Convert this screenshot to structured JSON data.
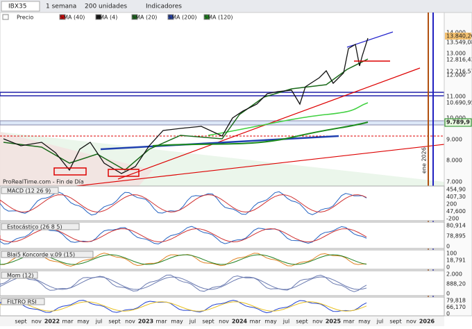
{
  "toolbar": {
    "symbol": "IBX35",
    "period": "1 semana",
    "units": "200 unidades",
    "indicators": "Indicadores"
  },
  "legend": [
    "Precio",
    "SMA (40)",
    "SMA (4)",
    "SMA (20)",
    "SMA (200)",
    "SMA (120)"
  ],
  "price_axis": [
    "14.000",
    "13.840,20",
    "13.549,08",
    "13.000",
    "12.816,43",
    "12.216,57",
    "12.000",
    "11.000",
    "10.690,95",
    "10.000",
    "9.789,9",
    "9.000",
    "8.000",
    "7.000"
  ],
  "watermark": "ProRealTime.com - Fin de Día",
  "vertical_label": "ene 2026",
  "panels": [
    {
      "title": "MACD (12 26 9)",
      "axis": [
        "454,90",
        "407,30",
        "200",
        "47,600",
        "-200"
      ]
    },
    {
      "title": "Estocástico (26 8 5)",
      "axis": [
        "80,914",
        "78,895",
        "0"
      ]
    },
    {
      "title": "Blai5 Koncorde v.09 (15)",
      "axis": [
        "100",
        "18,791",
        "0"
      ]
    },
    {
      "title": "Mom (12)",
      "axis": [
        "2.000",
        "888,20",
        "0"
      ]
    },
    {
      "title": "FILTRO RSI",
      "axis": [
        "79,818",
        "66,170",
        "0"
      ]
    }
  ],
  "x_axis": [
    "sept",
    "nov",
    "2022",
    "mar",
    "may",
    "jul",
    "sept",
    "nov",
    "2023",
    "mar",
    "may",
    "jul",
    "sept",
    "nov",
    "2024",
    "mar",
    "may",
    "jul",
    "sept",
    "nov",
    "2025",
    "mar",
    "may",
    "jul",
    "sept",
    "nov",
    "2026"
  ]
}
